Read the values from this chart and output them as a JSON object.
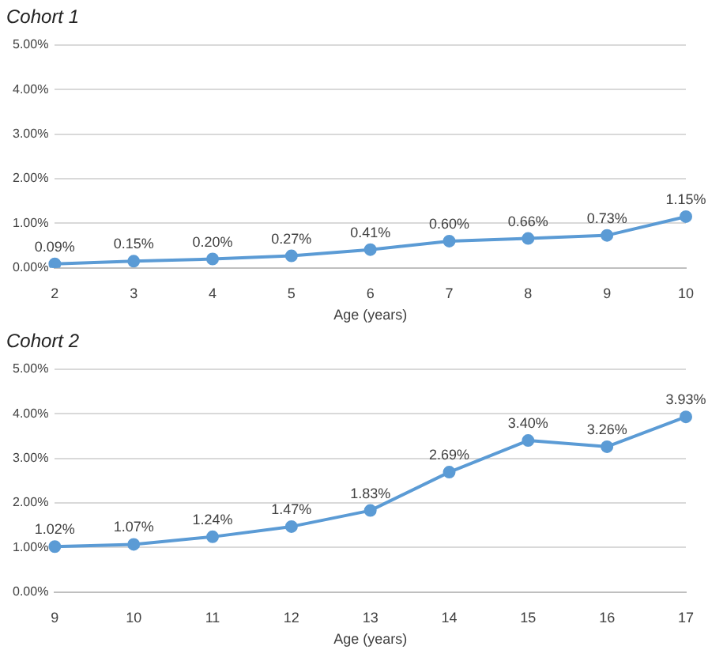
{
  "chart_data": [
    {
      "type": "line",
      "title": "Cohort 1",
      "xlabel": "Age (years)",
      "categories": [
        "2",
        "3",
        "4",
        "5",
        "6",
        "7",
        "8",
        "9",
        "10"
      ],
      "series": [
        {
          "color": "#5b9bd5",
          "values": [
            0.09,
            0.15,
            0.2,
            0.27,
            0.41,
            0.6,
            0.66,
            0.73,
            1.15
          ],
          "value_labels": [
            "0.09%",
            "0.15%",
            "0.20%",
            "0.27%",
            "0.41%",
            "0.60%",
            "0.66%",
            "0.73%",
            "1.15%"
          ]
        }
      ],
      "ylim": [
        0,
        5
      ],
      "yticks": [
        {
          "value": 0,
          "label": "0.00%"
        },
        {
          "value": 1,
          "label": "1.00%"
        },
        {
          "value": 2,
          "label": "2.00%"
        },
        {
          "value": 3,
          "label": "3.00%"
        },
        {
          "value": 4,
          "label": "4.00%"
        },
        {
          "value": 5,
          "label": "5.00%"
        }
      ],
      "grid": "y",
      "legend": false,
      "marker": "circle",
      "line_style": "solid"
    },
    {
      "type": "line",
      "title": "Cohort 2",
      "xlabel": "Age (years)",
      "categories": [
        "9",
        "10",
        "11",
        "12",
        "13",
        "14",
        "15",
        "16",
        "17"
      ],
      "series": [
        {
          "color": "#5b9bd5",
          "values": [
            1.02,
            1.07,
            1.24,
            1.47,
            1.83,
            2.69,
            3.4,
            3.26,
            3.93
          ],
          "value_labels": [
            "1.02%",
            "1.07%",
            "1.24%",
            "1.47%",
            "1.83%",
            "2.69%",
            "3.40%",
            "3.26%",
            "3.93%"
          ]
        }
      ],
      "ylim": [
        0,
        5
      ],
      "yticks": [
        {
          "value": 0,
          "label": "0.00%"
        },
        {
          "value": 1,
          "label": "1.00%"
        },
        {
          "value": 2,
          "label": "2.00%"
        },
        {
          "value": 3,
          "label": "3.00%"
        },
        {
          "value": 4,
          "label": "4.00%"
        },
        {
          "value": 5,
          "label": "5.00%"
        }
      ],
      "grid": "y",
      "legend": false,
      "marker": "circle",
      "line_style": "solid"
    }
  ]
}
